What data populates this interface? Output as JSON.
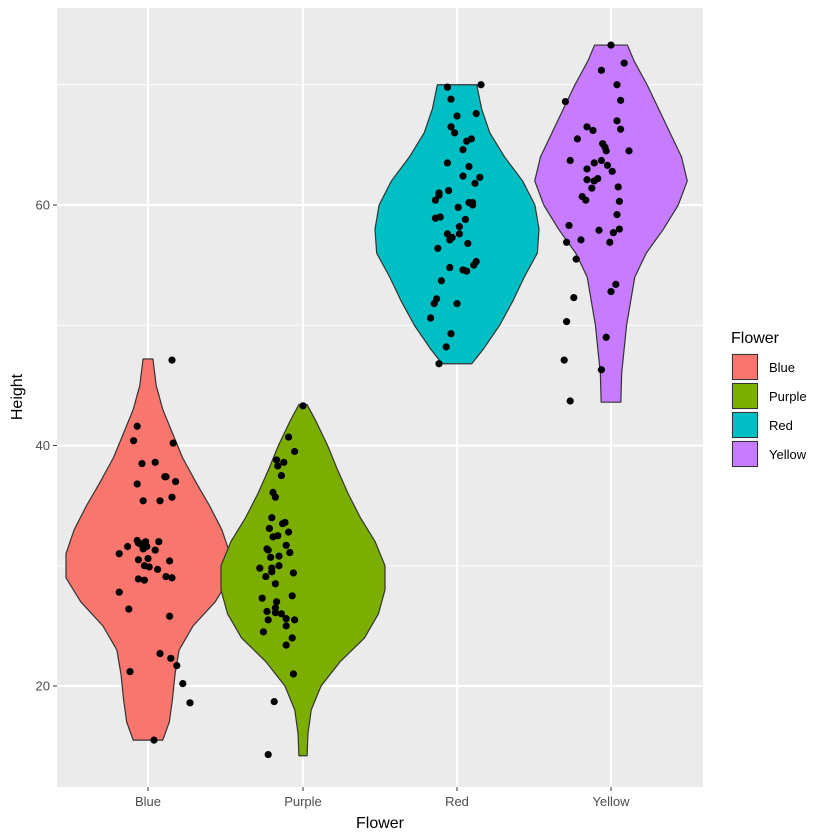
{
  "chart_data": {
    "type": "violin",
    "xlabel": "Flower",
    "ylabel": "Height",
    "ylim": [
      12,
      77
    ],
    "y_ticks": [
      "20",
      "40",
      "60"
    ],
    "grid": true,
    "legend": {
      "title": "Flower",
      "placement": "right"
    },
    "categories": [
      "Blue",
      "Purple",
      "Red",
      "Yellow"
    ],
    "colors": [
      "#F8766D",
      "#7CAE00",
      "#00BFC4",
      "#C77CFF"
    ],
    "violins": [
      {
        "name": "Blue",
        "min": 15.5,
        "max": 47.2,
        "profile": [
          [
            15.5,
            0.18
          ],
          [
            17,
            0.26
          ],
          [
            19,
            0.3
          ],
          [
            21,
            0.33
          ],
          [
            23,
            0.38
          ],
          [
            25,
            0.55
          ],
          [
            27,
            0.82
          ],
          [
            29,
            1.0
          ],
          [
            31,
            1.0
          ],
          [
            33,
            0.9
          ],
          [
            35,
            0.75
          ],
          [
            37,
            0.58
          ],
          [
            39,
            0.42
          ],
          [
            41,
            0.3
          ],
          [
            43,
            0.18
          ],
          [
            45,
            0.1
          ],
          [
            47.2,
            0.06
          ]
        ]
      },
      {
        "name": "Purple",
        "min": 14.2,
        "max": 43.4,
        "profile": [
          [
            14.2,
            0.05
          ],
          [
            16,
            0.06
          ],
          [
            18,
            0.1
          ],
          [
            20,
            0.22
          ],
          [
            22,
            0.45
          ],
          [
            24,
            0.75
          ],
          [
            26,
            0.92
          ],
          [
            28,
            1.0
          ],
          [
            30,
            1.0
          ],
          [
            32,
            0.88
          ],
          [
            34,
            0.7
          ],
          [
            36,
            0.55
          ],
          [
            38,
            0.42
          ],
          [
            40,
            0.3
          ],
          [
            42,
            0.16
          ],
          [
            43.4,
            0.05
          ]
        ]
      },
      {
        "name": "Red",
        "min": 46.8,
        "max": 70,
        "profile": [
          [
            46.8,
            0.18
          ],
          [
            48,
            0.32
          ],
          [
            50,
            0.52
          ],
          [
            52,
            0.68
          ],
          [
            54,
            0.82
          ],
          [
            56,
            0.98
          ],
          [
            58,
            1.0
          ],
          [
            60,
            0.95
          ],
          [
            62,
            0.8
          ],
          [
            64,
            0.58
          ],
          [
            66,
            0.4
          ],
          [
            68,
            0.3
          ],
          [
            70,
            0.24
          ]
        ]
      },
      {
        "name": "Yellow",
        "min": 43.6,
        "max": 73.3,
        "profile": [
          [
            43.6,
            0.12
          ],
          [
            46,
            0.13
          ],
          [
            48,
            0.16
          ],
          [
            50,
            0.19
          ],
          [
            52,
            0.24
          ],
          [
            54,
            0.29
          ],
          [
            56,
            0.43
          ],
          [
            58,
            0.64
          ],
          [
            60,
            0.82
          ],
          [
            62,
            0.93
          ],
          [
            64,
            0.86
          ],
          [
            66,
            0.72
          ],
          [
            68,
            0.58
          ],
          [
            70,
            0.44
          ],
          [
            72,
            0.28
          ],
          [
            73.3,
            0.2
          ]
        ]
      }
    ],
    "points": [
      {
        "name": "Blue",
        "x": [
          0.7,
          0.56,
          0.45,
          0.65,
          0.64,
          0.6,
          0.46,
          0.7,
          0.41,
          0.41,
          0.48,
          0.46,
          0.56,
          0.49,
          0.33,
          0.26,
          0.44,
          0.59,
          0.42,
          0.5,
          0.47,
          0.51,
          0.7,
          0.65,
          0.42,
          0.47,
          0.26,
          0.34,
          0.35,
          0.6,
          0.69,
          0.74,
          0.79,
          0.85,
          0.55,
          0.41,
          0.38,
          0.71,
          0.73,
          0.68,
          0.47,
          0.42,
          0.58,
          0.68
        ],
        "y": [
          47.1,
          38.6,
          38.5,
          37.4,
          37.4,
          35.4,
          35.4,
          35.7,
          36.8,
          32.1,
          32.0,
          31.4,
          31.3,
          31.6,
          31.6,
          31.0,
          31.8,
          32.0,
          30.5,
          30.6,
          30.0,
          29.9,
          29.0,
          29.1,
          28.9,
          28.8,
          27.8,
          26.4,
          21.2,
          22.7,
          22.3,
          21.7,
          20.2,
          18.6,
          15.5,
          41.6,
          40.4,
          40.2,
          37.0,
          30.4,
          31.9,
          31.9,
          29.7,
          25.8
        ],
        "colorless": true
      },
      {
        "name": "Purple",
        "x": [
          0.5,
          0.43,
          0.38,
          0.34,
          0.32,
          0.29,
          0.28,
          0.24,
          0.25,
          0.27,
          0.33,
          0.25,
          0.2,
          0.24,
          0.27,
          0.35,
          0.38,
          0.36,
          0.3,
          0.3,
          0.24,
          0.39,
          0.42,
          0.41,
          0.43,
          0.42,
          0.36,
          0.32,
          0.28,
          0.21,
          0.17,
          0.16,
          0.14,
          0.19,
          0.21,
          0.23,
          0.29,
          0.22,
          0.2,
          0.27,
          0.36,
          0.41,
          0.36,
          0.27,
          0.26,
          0.21
        ],
        "y": [
          43.3,
          39.5,
          40.7,
          38.6,
          37.5,
          38.3,
          38.8,
          34.0,
          36.1,
          35.7,
          33.5,
          32.4,
          31.4,
          29.5,
          28.5,
          33.6,
          32.8,
          31.7,
          30.8,
          30.0,
          29.8,
          31.1,
          29.4,
          27.5,
          25.5,
          21.0,
          25.6,
          26.0,
          27.0,
          25.5,
          24.5,
          27.3,
          29.8,
          29.1,
          31.3,
          30.7,
          32.5,
          33.1,
          26.2,
          26.5,
          23.4,
          24.0,
          25.0,
          26.1,
          18.7,
          14.3
        ],
        "colorless": true
      },
      {
        "name": "Red",
        "x": [
          0.7,
          0.66,
          0.58,
          0.55,
          0.6,
          0.48,
          0.42,
          0.45,
          0.45,
          0.5,
          0.42,
          0.55,
          0.65,
          0.6,
          0.63,
          0.57,
          0.52,
          0.52,
          0.46,
          0.44,
          0.34,
          0.36,
          0.32,
          0.43,
          0.35,
          0.35,
          0.32,
          0.44,
          0.55,
          0.58,
          0.64,
          0.66,
          0.59,
          0.5,
          0.45,
          0.41,
          0.35,
          0.28,
          0.31,
          0.33,
          0.37,
          0.42,
          0.51,
          0.63,
          0.69,
          0.62
        ],
        "y": [
          70.0,
          67.6,
          65.3,
          64.6,
          63.2,
          66.0,
          69.8,
          68.8,
          66.5,
          67.4,
          63.5,
          62.4,
          61.8,
          60.2,
          60.0,
          58.8,
          58.2,
          57.6,
          57.3,
          57.1,
          56.4,
          59.0,
          58.9,
          61.2,
          61.0,
          60.8,
          60.4,
          54.8,
          54.6,
          54.5,
          55.0,
          55.3,
          56.8,
          51.8,
          49.3,
          48.2,
          46.8,
          50.6,
          51.8,
          52.2,
          53.7,
          57.6,
          59.8,
          60.2,
          62.3,
          65.5
        ],
        "colorless": true
      },
      {
        "name": "Yellow",
        "x": [
          0.5,
          0.42,
          0.55,
          0.58,
          0.55,
          0.47,
          0.43,
          0.45,
          0.46,
          0.58,
          0.56,
          0.57,
          0.55,
          0.52,
          0.39,
          0.36,
          0.34,
          0.29,
          0.25,
          0.19,
          0.21,
          0.16,
          0.12,
          0.22,
          0.35,
          0.42,
          0.3,
          0.26,
          0.15,
          0.13,
          0.11,
          0.13,
          0.16,
          0.54,
          0.5,
          0.46,
          0.42,
          0.4,
          0.49,
          0.57,
          0.51,
          0.36,
          0.3,
          0.3,
          0.61,
          0.65
        ],
        "y": [
          73.3,
          71.2,
          70.0,
          68.7,
          67.0,
          63.3,
          65.1,
          64.8,
          64.5,
          66.3,
          61.5,
          60.3,
          59.2,
          57.7,
          62.2,
          62.0,
          61.4,
          60.4,
          57.1,
          52.3,
          55.5,
          63.7,
          68.6,
          65.5,
          66.2,
          63.7,
          62.1,
          60.7,
          58.3,
          56.9,
          47.1,
          50.3,
          43.7,
          53.4,
          52.8,
          49.0,
          46.3,
          57.9,
          56.9,
          58.0,
          62.8,
          63.5,
          66.5,
          63.0,
          71.8,
          64.5
        ],
        "colorless": true
      }
    ]
  }
}
